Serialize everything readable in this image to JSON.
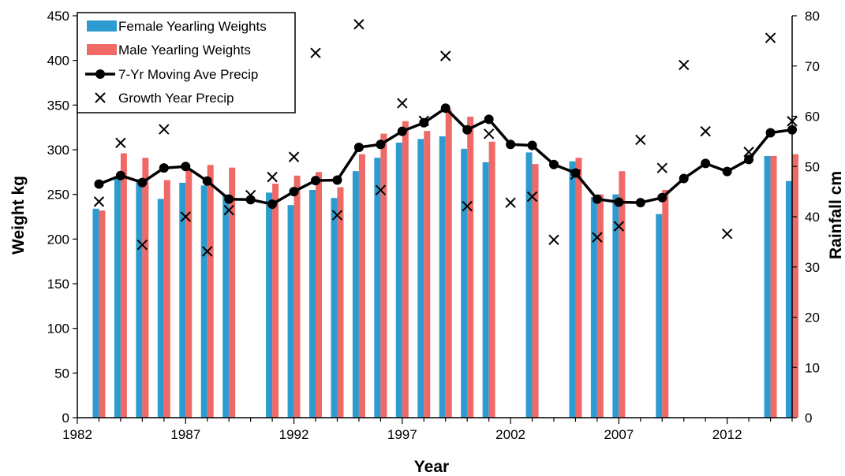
{
  "chart_data": {
    "type": "bar",
    "xlabel": "Year",
    "ylabel": "Weight  kg",
    "y2label": "Rainfall  cm",
    "ylim": [
      0,
      450
    ],
    "y2lim": [
      0,
      80
    ],
    "xlim": [
      1982,
      2015
    ],
    "x_ticks": [
      1982,
      1987,
      1992,
      1997,
      2002,
      2007,
      2012
    ],
    "y_ticks": [
      0,
      50,
      100,
      150,
      200,
      250,
      300,
      350,
      400,
      450
    ],
    "y2_ticks": [
      0,
      10,
      20,
      30,
      40,
      50,
      60,
      70,
      80
    ],
    "legend_position": "top-left",
    "colors": {
      "female": "#2e9bd0",
      "male": "#ef6a67",
      "moving_avg": "#000000",
      "growth": "#000000"
    },
    "series": [
      {
        "name": "Female Yearling Weights",
        "kind": "bar",
        "axis": "left",
        "points": [
          [
            1983,
            234
          ],
          [
            1984,
            270
          ],
          [
            1985,
            267
          ],
          [
            1986,
            245
          ],
          [
            1987,
            263
          ],
          [
            1988,
            260
          ],
          [
            1989,
            250
          ],
          [
            1991,
            252
          ],
          [
            1992,
            238
          ],
          [
            1993,
            255
          ],
          [
            1994,
            246
          ],
          [
            1995,
            276
          ],
          [
            1996,
            291
          ],
          [
            1997,
            308
          ],
          [
            1998,
            312
          ],
          [
            1999,
            315
          ],
          [
            2000,
            301
          ],
          [
            2001,
            286
          ],
          [
            2003,
            297
          ],
          [
            2005,
            287
          ],
          [
            2006,
            247
          ],
          [
            2007,
            250
          ],
          [
            2009,
            228
          ],
          [
            2014,
            293
          ],
          [
            2015,
            265
          ]
        ]
      },
      {
        "name": "Male Yearling Weights",
        "kind": "bar",
        "axis": "left",
        "points": [
          [
            1983,
            232
          ],
          [
            1984,
            296
          ],
          [
            1985,
            291
          ],
          [
            1986,
            266
          ],
          [
            1987,
            278
          ],
          [
            1988,
            283
          ],
          [
            1989,
            280
          ],
          [
            1991,
            262
          ],
          [
            1992,
            271
          ],
          [
            1993,
            275
          ],
          [
            1994,
            258
          ],
          [
            1995,
            295
          ],
          [
            1996,
            318
          ],
          [
            1997,
            332
          ],
          [
            1998,
            321
          ],
          [
            1999,
            345
          ],
          [
            2000,
            337
          ],
          [
            2001,
            309
          ],
          [
            2003,
            284
          ],
          [
            2005,
            291
          ],
          [
            2006,
            250
          ],
          [
            2007,
            276
          ],
          [
            2009,
            255
          ],
          [
            2014,
            293
          ],
          [
            2015,
            295
          ]
        ]
      },
      {
        "name": "7-Yr Moving Ave Precip",
        "kind": "line",
        "axis": "right",
        "points": [
          [
            1983,
            46.5
          ],
          [
            1984,
            48.2
          ],
          [
            1985,
            46.8
          ],
          [
            1986,
            49.7
          ],
          [
            1987,
            50.0
          ],
          [
            1988,
            47.1
          ],
          [
            1989,
            43.5
          ],
          [
            1990,
            43.4
          ],
          [
            1991,
            42.5
          ],
          [
            1992,
            45.0
          ],
          [
            1993,
            47.2
          ],
          [
            1994,
            47.3
          ],
          [
            1995,
            53.8
          ],
          [
            1996,
            54.4
          ],
          [
            1997,
            57.0
          ],
          [
            1998,
            58.7
          ],
          [
            1999,
            61.6
          ],
          [
            2000,
            57.3
          ],
          [
            2001,
            59.4
          ],
          [
            2002,
            54.4
          ],
          [
            2003,
            54.2
          ],
          [
            2004,
            50.4
          ],
          [
            2005,
            48.7
          ],
          [
            2006,
            43.5
          ],
          [
            2007,
            42.9
          ],
          [
            2008,
            42.8
          ],
          [
            2009,
            43.8
          ],
          [
            2010,
            47.6
          ],
          [
            2011,
            50.6
          ],
          [
            2012,
            49.0
          ],
          [
            2013,
            51.4
          ],
          [
            2014,
            56.7
          ],
          [
            2015,
            57.3
          ]
        ]
      },
      {
        "name": "Growth Year Precip",
        "kind": "scatter",
        "axis": "right",
        "points": [
          [
            1983,
            43.0
          ],
          [
            1984,
            54.7
          ],
          [
            1985,
            34.4
          ],
          [
            1986,
            57.4
          ],
          [
            1987,
            40.0
          ],
          [
            1988,
            33.1
          ],
          [
            1989,
            41.3
          ],
          [
            1990,
            44.3
          ],
          [
            1991,
            47.9
          ],
          [
            1992,
            51.9
          ],
          [
            1993,
            72.6
          ],
          [
            1994,
            40.3
          ],
          [
            1995,
            78.3
          ],
          [
            1996,
            45.3
          ],
          [
            1997,
            62.6
          ],
          [
            1998,
            59.1
          ],
          [
            1999,
            72.0
          ],
          [
            2000,
            42.1
          ],
          [
            2001,
            56.5
          ],
          [
            2002,
            42.8
          ],
          [
            2003,
            44.0
          ],
          [
            2004,
            35.4
          ],
          [
            2005,
            48.4
          ],
          [
            2006,
            35.9
          ],
          [
            2007,
            38.1
          ],
          [
            2008,
            55.3
          ],
          [
            2009,
            49.7
          ],
          [
            2010,
            70.2
          ],
          [
            2011,
            57.0
          ],
          [
            2012,
            36.6
          ],
          [
            2013,
            52.9
          ],
          [
            2014,
            75.6
          ],
          [
            2015,
            59.0
          ]
        ]
      }
    ]
  }
}
